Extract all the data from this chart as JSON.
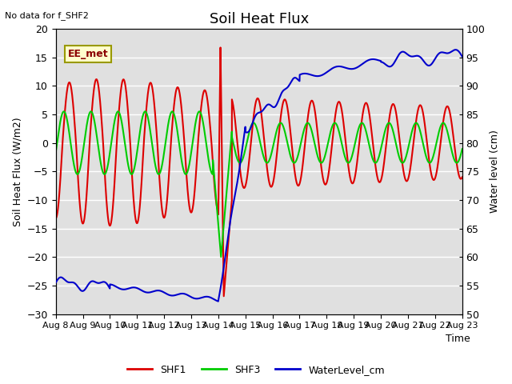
{
  "title": "Soil Heat Flux",
  "note": "No data for f_SHF2",
  "ylabel_left": "Soil Heat Flux (W/m2)",
  "ylabel_right": "Water level (cm)",
  "xlabel": "Time",
  "ylim_left": [
    -30,
    20
  ],
  "ylim_right": [
    50,
    100
  ],
  "yticks_left": [
    -30,
    -25,
    -20,
    -15,
    -10,
    -5,
    0,
    5,
    10,
    15,
    20
  ],
  "yticks_right": [
    50,
    55,
    60,
    65,
    70,
    75,
    80,
    85,
    90,
    95,
    100
  ],
  "xtick_labels": [
    "Aug 8",
    "Aug 9",
    "Aug 10",
    "Aug 11",
    "Aug 12",
    "Aug 13",
    "Aug 14",
    "Aug 15",
    "Aug 16",
    "Aug 17",
    "Aug 18",
    "Aug 19",
    "Aug 20",
    "Aug 21",
    "Aug 22",
    "Aug 23"
  ],
  "bg_color": "#e0e0e0",
  "legend_label_box": "EE_met",
  "shf1_color": "#dd0000",
  "shf3_color": "#00cc00",
  "water_color": "#0000cc",
  "line_width": 1.5
}
